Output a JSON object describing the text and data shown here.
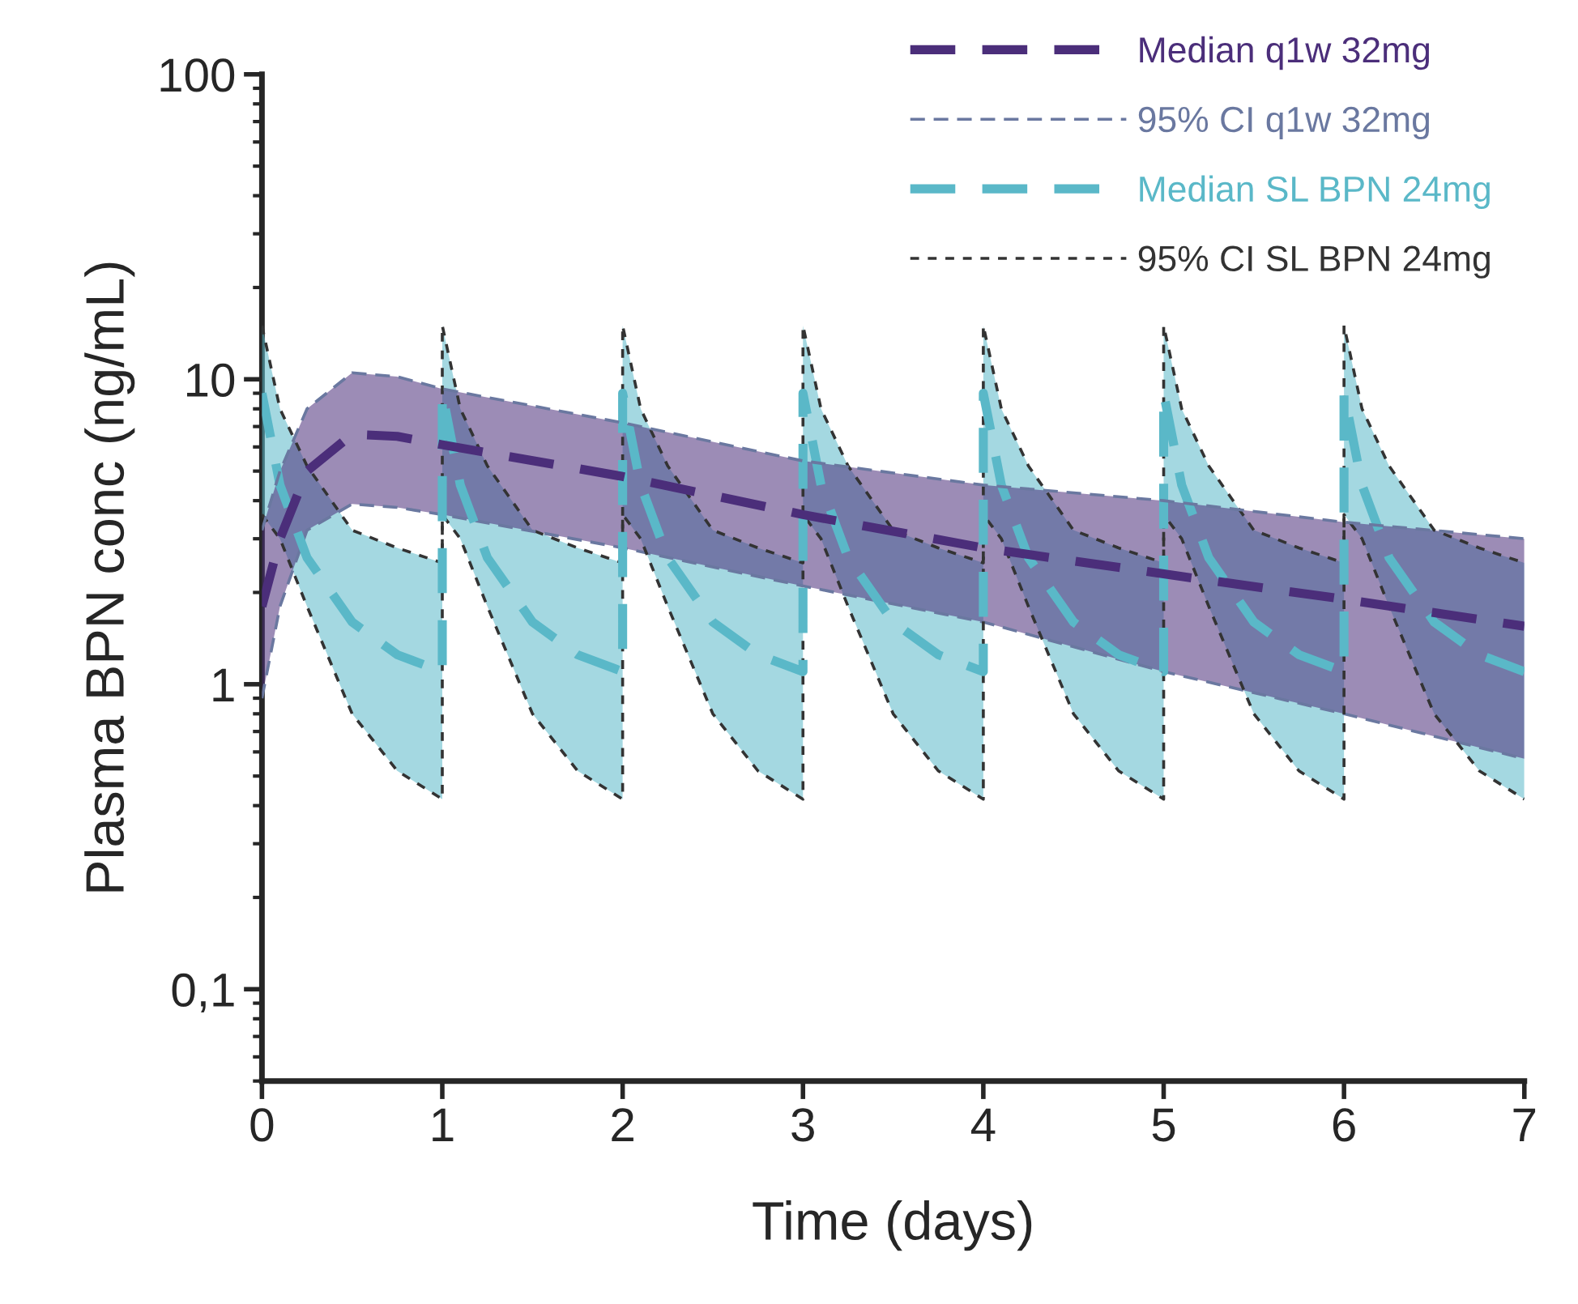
{
  "chart_data": {
    "type": "line",
    "xlabel": "Time (days)",
    "ylabel": "Plasma BPN conc (ng/mL)",
    "log": "y",
    "xlim": [
      0,
      7
    ],
    "xticks": [
      0,
      1,
      2,
      3,
      4,
      5,
      6,
      7
    ],
    "ylim": [
      0.05,
      100
    ],
    "yticks": [
      {
        "value": 0.1,
        "label": "0,1"
      },
      1,
      10,
      100
    ],
    "legend": "top right",
    "series": [
      {
        "name": "Median q1w 32mg",
        "line_style": "dashed",
        "color": "#4b2e7a",
        "x": [
          0,
          0.1,
          0.25,
          0.5,
          0.75,
          1,
          2,
          3,
          4,
          5,
          6,
          7
        ],
        "values": [
          1.8,
          3,
          5,
          6.6,
          6.5,
          6.1,
          4.8,
          3.6,
          2.8,
          2.3,
          1.9,
          1.55
        ],
        "lower": [
          0.9,
          1.8,
          3.2,
          3.9,
          3.8,
          3.6,
          2.8,
          2.1,
          1.6,
          1.1,
          0.8,
          0.57
        ],
        "upper": [
          3.2,
          5,
          8,
          10.5,
          10.2,
          9.3,
          7.2,
          5.4,
          4.5,
          4,
          3.4,
          3
        ]
      },
      {
        "name": "95% CI q1w 32mg",
        "line_style": "dashed",
        "color": "#6a78a0",
        "x": [
          0,
          0.1,
          0.25,
          0.5,
          0.75,
          1,
          2,
          3,
          4,
          5,
          6,
          7
        ],
        "values": [
          3.2,
          5,
          8,
          10.5,
          10.2,
          9.3,
          7.2,
          5.4,
          4.5,
          4,
          3.4,
          3
        ]
      },
      {
        "name": "Median SL BPN 24mg",
        "line_style": "dashed",
        "color": "#5ab8c8",
        "x": [
          0,
          0.1,
          0.25,
          0.5,
          0.75,
          1,
          1,
          1.1,
          1.25,
          1.5,
          1.75,
          2,
          2,
          2.1,
          2.25,
          2.5,
          2.75,
          3,
          3,
          3.1,
          3.25,
          3.5,
          3.75,
          4,
          4,
          4.1,
          4.25,
          4.5,
          4.75,
          5,
          5,
          5.1,
          5.25,
          5.5,
          5.75,
          6,
          6,
          6.1,
          6.25,
          6.5,
          6.75,
          7
        ],
        "values": [
          9,
          4.5,
          2.6,
          1.6,
          1.25,
          1.1,
          9,
          4.5,
          2.6,
          1.6,
          1.25,
          1.1,
          9,
          4.5,
          2.6,
          1.6,
          1.25,
          1.1,
          9,
          4.5,
          2.6,
          1.6,
          1.25,
          1.1,
          9,
          4.5,
          2.6,
          1.6,
          1.25,
          1.1,
          9,
          4.5,
          2.6,
          1.6,
          1.25,
          1.1,
          9,
          4.5,
          2.6,
          1.6,
          1.25,
          1.1
        ],
        "lower": [
          3.6,
          3,
          1.8,
          0.8,
          0.52,
          0.42,
          3.6,
          3,
          1.8,
          0.8,
          0.52,
          0.42,
          3.6,
          3,
          1.8,
          0.8,
          0.52,
          0.42,
          3.6,
          3,
          1.8,
          0.8,
          0.52,
          0.42,
          3.6,
          3,
          1.8,
          0.8,
          0.52,
          0.42,
          3.6,
          3,
          1.8,
          0.8,
          0.52,
          0.42,
          3.6,
          3,
          1.8,
          0.8,
          0.52,
          0.42
        ],
        "upper": [
          15,
          8,
          5.2,
          3.2,
          2.8,
          2.5,
          15,
          8,
          5.2,
          3.2,
          2.8,
          2.5,
          15,
          8,
          5.2,
          3.2,
          2.8,
          2.5,
          15,
          8,
          5.2,
          3.2,
          2.8,
          2.5,
          15,
          8,
          5.2,
          3.2,
          2.8,
          2.5,
          15,
          8,
          5.2,
          3.2,
          2.8,
          2.5,
          15,
          8,
          5.2,
          3.2,
          2.8,
          2.5
        ]
      },
      {
        "name": "95% CI SL BPN 24mg",
        "line_style": "dotted",
        "color": "#333333",
        "x": [
          0,
          0.1,
          0.25,
          0.5,
          0.75,
          1,
          1,
          1.1,
          1.25,
          1.5,
          1.75,
          2,
          2,
          2.1,
          2.25,
          2.5,
          2.75,
          3,
          3,
          3.1,
          3.25,
          3.5,
          3.75,
          4,
          4,
          4.1,
          4.25,
          4.5,
          4.75,
          5,
          5,
          5.1,
          5.25,
          5.5,
          5.75,
          6,
          6,
          6.1,
          6.25,
          6.5,
          6.75,
          7
        ],
        "values": [
          3.6,
          3,
          1.8,
          0.8,
          0.52,
          0.42,
          3.6,
          3,
          1.8,
          0.8,
          0.52,
          0.42,
          3.6,
          3,
          1.8,
          0.8,
          0.52,
          0.42,
          3.6,
          3,
          1.8,
          0.8,
          0.52,
          0.42,
          3.6,
          3,
          1.8,
          0.8,
          0.52,
          0.42,
          3.6,
          3,
          1.8,
          0.8,
          0.52,
          0.42,
          3.6,
          3,
          1.8,
          0.8,
          0.52,
          0.42
        ]
      },
      {
        "line_style": "dashed",
        "color": "#6a78a0",
        "x": [
          0,
          0.1,
          0.25,
          0.5,
          0.75,
          1,
          2,
          3,
          4,
          5,
          6,
          7
        ],
        "values": [
          0.9,
          1.8,
          3.2,
          3.9,
          3.8,
          3.6,
          2.8,
          2.1,
          1.6,
          1.1,
          0.8,
          0.57
        ]
      },
      {
        "line_style": "dotted",
        "color": "#333333",
        "x": [
          0,
          0.1,
          0.25,
          0.5,
          0.75,
          1,
          1,
          1.1,
          1.25,
          1.5,
          1.75,
          2,
          2,
          2.1,
          2.25,
          2.5,
          2.75,
          3,
          3,
          3.1,
          3.25,
          3.5,
          3.75,
          4,
          4,
          4.1,
          4.25,
          4.5,
          4.75,
          5,
          5,
          5.1,
          5.25,
          5.5,
          5.75,
          6,
          6,
          6.1,
          6.25,
          6.5,
          6.75,
          7
        ],
        "values": [
          15,
          8,
          5.2,
          3.2,
          2.8,
          2.5,
          15,
          8,
          5.2,
          3.2,
          2.8,
          2.5,
          15,
          8,
          5.2,
          3.2,
          2.8,
          2.5,
          15,
          8,
          5.2,
          3.2,
          2.8,
          2.5,
          15,
          8,
          5.2,
          3.2,
          2.8,
          2.5,
          15,
          8,
          5.2,
          3.2,
          2.8,
          2.5,
          15,
          8,
          5.2,
          3.2,
          2.8,
          2.5
        ]
      }
    ]
  }
}
